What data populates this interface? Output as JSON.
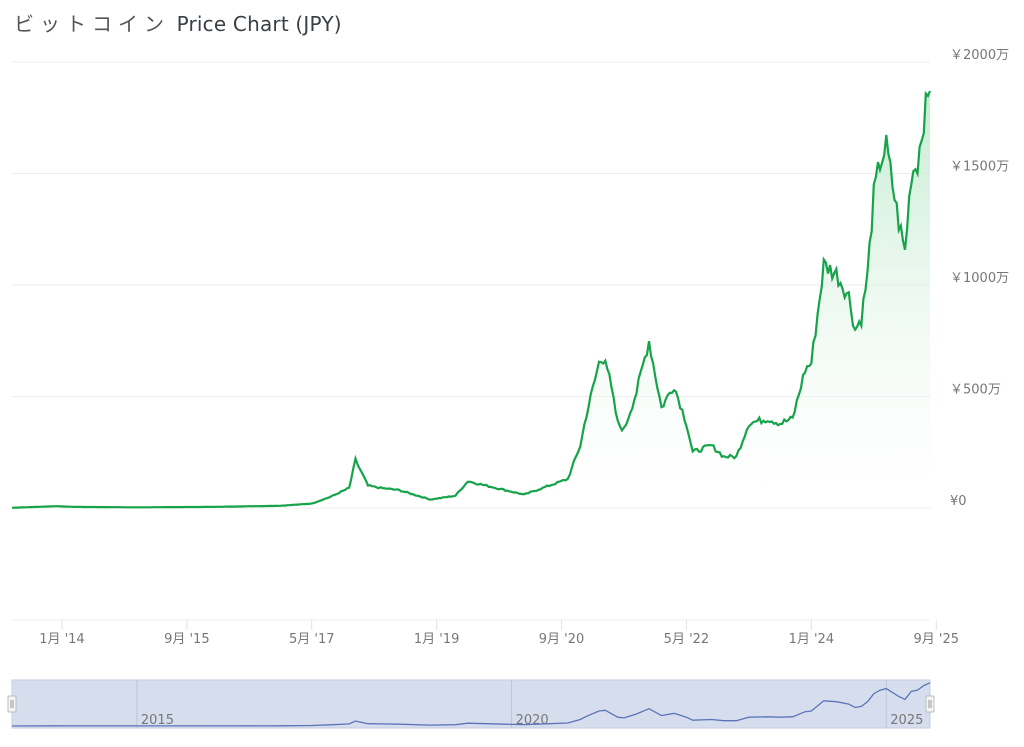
{
  "title_jp": "ビットコイン",
  "title_en": "Price Chart (JPY)",
  "colors": {
    "line": "#16a34a",
    "fill_top": "#bfe9cc",
    "navigator_bg": "#d6deee",
    "navigator_line": "#5b74b8",
    "grid": "#ececec"
  },
  "chart_data": {
    "type": "area",
    "title": "ビットコイン Price Chart (JPY)",
    "y_unit": "万円",
    "ylim": [
      0,
      2000
    ],
    "xlim": [
      "2013-05",
      "2025-08"
    ],
    "y_ticks": [
      {
        "value": 0,
        "label": "¥0"
      },
      {
        "value": 500,
        "label": "￥500万"
      },
      {
        "value": 1000,
        "label": "￥1000万"
      },
      {
        "value": 1500,
        "label": "￥1500万"
      },
      {
        "value": 2000,
        "label": "￥2000万"
      }
    ],
    "x_ticks": [
      {
        "date": "2014-01",
        "label": "1月 '14"
      },
      {
        "date": "2015-09",
        "label": "9月 '15"
      },
      {
        "date": "2017-05",
        "label": "5月 '17"
      },
      {
        "date": "2019-01",
        "label": "1月 '19"
      },
      {
        "date": "2020-09",
        "label": "9月 '20"
      },
      {
        "date": "2022-05",
        "label": "5月 '22"
      },
      {
        "date": "2024-01",
        "label": "1月 '24"
      },
      {
        "date": "2025-09",
        "label": "9月 '25"
      }
    ],
    "navigator_ticks": [
      {
        "date": "2015-01",
        "label": "2015"
      },
      {
        "date": "2020-01",
        "label": "2020"
      },
      {
        "date": "2025-01",
        "label": "2025"
      }
    ],
    "grid": true,
    "legend": "none",
    "points": [
      [
        "2013-05",
        1
      ],
      [
        "2013-12",
        8
      ],
      [
        "2014-03",
        5
      ],
      [
        "2015-01",
        3
      ],
      [
        "2016-01",
        5
      ],
      [
        "2016-12",
        10
      ],
      [
        "2017-05",
        20
      ],
      [
        "2017-08",
        50
      ],
      [
        "2017-11",
        90
      ],
      [
        "2017-12",
        215
      ],
      [
        "2018-02",
        100
      ],
      [
        "2018-04",
        90
      ],
      [
        "2018-07",
        80
      ],
      [
        "2018-12",
        38
      ],
      [
        "2019-04",
        55
      ],
      [
        "2019-06",
        120
      ],
      [
        "2019-09",
        100
      ],
      [
        "2019-12",
        80
      ],
      [
        "2020-03",
        60
      ],
      [
        "2020-07",
        100
      ],
      [
        "2020-10",
        130
      ],
      [
        "2020-12",
        280
      ],
      [
        "2021-01",
        420
      ],
      [
        "2021-03",
        650
      ],
      [
        "2021-04",
        680
      ],
      [
        "2021-06",
        380
      ],
      [
        "2021-07",
        350
      ],
      [
        "2021-09",
        520
      ],
      [
        "2021-11",
        750
      ],
      [
        "2022-01",
        450
      ],
      [
        "2022-03",
        550
      ],
      [
        "2022-05",
        380
      ],
      [
        "2022-06",
        250
      ],
      [
        "2022-09",
        280
      ],
      [
        "2022-11",
        230
      ],
      [
        "2023-01",
        230
      ],
      [
        "2023-03",
        380
      ],
      [
        "2023-06",
        400
      ],
      [
        "2023-08",
        380
      ],
      [
        "2023-10",
        400
      ],
      [
        "2023-12",
        620
      ],
      [
        "2024-01",
        650
      ],
      [
        "2024-03",
        1090
      ],
      [
        "2024-05",
        1050
      ],
      [
        "2024-07",
        950
      ],
      [
        "2024-08",
        800
      ],
      [
        "2024-09",
        850
      ],
      [
        "2024-10",
        1050
      ],
      [
        "2024-11",
        1400
      ],
      [
        "2024-12",
        1550
      ],
      [
        "2025-01",
        1620
      ],
      [
        "2025-02",
        1450
      ],
      [
        "2025-03",
        1280
      ],
      [
        "2025-04",
        1150
      ],
      [
        "2025-05",
        1500
      ],
      [
        "2025-06",
        1550
      ],
      [
        "2025-07",
        1750
      ],
      [
        "2025-08",
        1870
      ]
    ]
  }
}
